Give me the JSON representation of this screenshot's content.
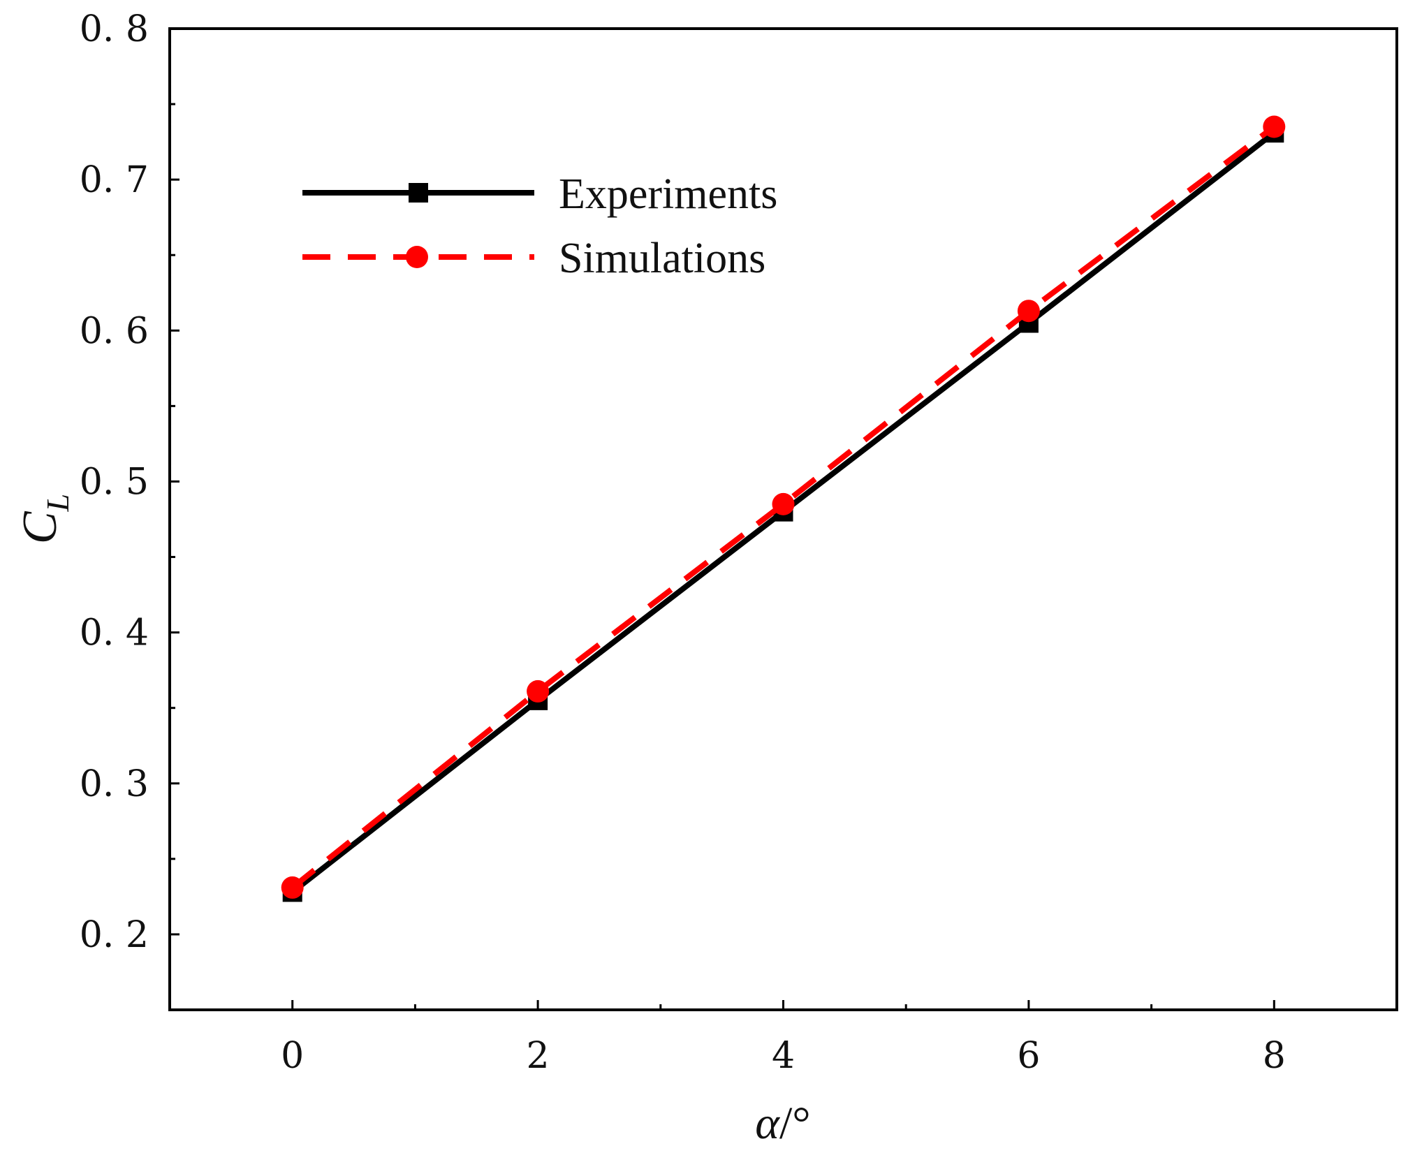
{
  "chart_data": {
    "type": "line",
    "xlabel": {
      "symbol": "α",
      "unit": "/°"
    },
    "ylabel": {
      "symbol": "C",
      "subscript": "L"
    },
    "xlim": [
      -1,
      9
    ],
    "ylim": [
      0.15,
      0.8
    ],
    "x_major_ticks": [
      0,
      2,
      4,
      6,
      8
    ],
    "x_minor_ticks": [
      1,
      3,
      5,
      7
    ],
    "x_tick_labels": [
      "0",
      "2",
      "4",
      "6",
      "8"
    ],
    "y_major_ticks": [
      0.2,
      0.3,
      0.4,
      0.5,
      0.6,
      0.7,
      0.8
    ],
    "y_minor_ticks": [
      0.25,
      0.35,
      0.45,
      0.55,
      0.65,
      0.75
    ],
    "y_tick_labels": [
      "0. 2",
      "0. 3",
      "0. 4",
      "0. 5",
      "0. 6",
      "0. 7",
      "0. 8"
    ],
    "grid": false,
    "legend_position": "top-left",
    "series": [
      {
        "name": "Experiments",
        "color": "#000000",
        "line_style": "solid",
        "marker": "square",
        "x": [
          0,
          2,
          4,
          6,
          8
        ],
        "y": [
          0.228,
          0.355,
          0.48,
          0.605,
          0.731
        ]
      },
      {
        "name": "Simulations",
        "color": "#ff0000",
        "line_style": "dashed",
        "marker": "circle",
        "x": [
          0,
          2,
          4,
          6,
          8
        ],
        "y": [
          0.231,
          0.361,
          0.485,
          0.613,
          0.735
        ]
      }
    ]
  }
}
